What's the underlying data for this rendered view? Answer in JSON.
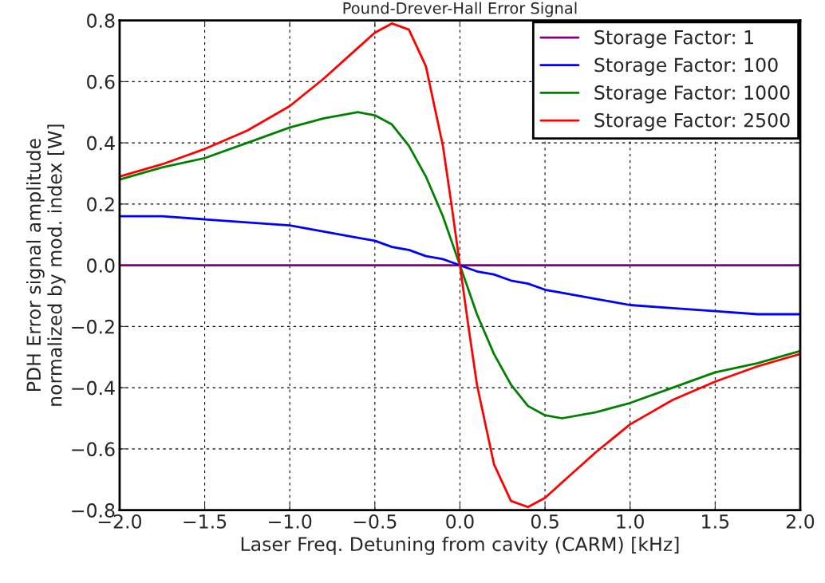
{
  "chart_data": {
    "type": "line",
    "title": "Pound-Drever-Hall Error Signal",
    "xlabel": "Laser Freq. Detuning from cavity (CARM) [kHz]",
    "ylabel": "PDH Error signal amplitude\nnormalized by mod. index [W]",
    "x": [
      -2,
      -1.75,
      -1.5,
      -1.25,
      -1,
      -0.8,
      -0.6,
      -0.5,
      -0.4,
      -0.3,
      -0.2,
      -0.1,
      -0.05,
      0,
      0.05,
      0.1,
      0.2,
      0.3,
      0.4,
      0.5,
      0.6,
      0.8,
      1,
      1.25,
      1.5,
      1.75,
      2
    ],
    "series": [
      {
        "name": "Storage Factor: 1",
        "color": "#800080",
        "values": [
          0.0,
          0.0,
          0.0,
          0.0,
          0.0,
          0.0,
          0.0,
          0.0,
          0.0,
          0.0,
          0.0,
          0.0,
          0.0,
          0.0,
          0.0,
          0.0,
          0.0,
          0.0,
          0.0,
          0.0,
          0.0,
          0.0,
          0.0,
          0.0,
          0.0,
          0.0,
          0.0
        ]
      },
      {
        "name": "Storage Factor: 100",
        "color": "#0000ff",
        "values": [
          0.16,
          0.16,
          0.15,
          0.14,
          0.13,
          0.11,
          0.09,
          0.08,
          0.06,
          0.05,
          0.03,
          0.02,
          0.01,
          0.0,
          -0.01,
          -0.02,
          -0.03,
          -0.05,
          -0.06,
          -0.08,
          -0.09,
          -0.11,
          -0.13,
          -0.14,
          -0.15,
          -0.16,
          -0.16
        ]
      },
      {
        "name": "Storage Factor: 1000",
        "color": "#008000",
        "values": [
          0.28,
          0.32,
          0.35,
          0.4,
          0.45,
          0.48,
          0.5,
          0.49,
          0.46,
          0.39,
          0.29,
          0.16,
          0.08,
          0.0,
          -0.08,
          -0.16,
          -0.29,
          -0.39,
          -0.46,
          -0.49,
          -0.5,
          -0.48,
          -0.45,
          -0.4,
          -0.35,
          -0.32,
          -0.28
        ]
      },
      {
        "name": "Storage Factor: 2500",
        "color": "#ff0000",
        "values": [
          0.29,
          0.33,
          0.38,
          0.44,
          0.52,
          0.61,
          0.71,
          0.76,
          0.79,
          0.77,
          0.65,
          0.39,
          0.2,
          0.0,
          -0.2,
          -0.39,
          -0.65,
          -0.77,
          -0.79,
          -0.76,
          -0.71,
          -0.61,
          -0.52,
          -0.44,
          -0.38,
          -0.33,
          -0.29
        ]
      }
    ],
    "xlim": [
      -2,
      2
    ],
    "ylim": [
      -0.8,
      0.8
    ],
    "xticks": [
      {
        "value": -2,
        "label": "−2.0"
      },
      {
        "value": -1.5,
        "label": "−1.5"
      },
      {
        "value": -1,
        "label": "−1.0"
      },
      {
        "value": -0.5,
        "label": "−0.5"
      },
      {
        "value": 0,
        "label": "0.0"
      },
      {
        "value": 0.5,
        "label": "0.5"
      },
      {
        "value": 1,
        "label": "1.0"
      },
      {
        "value": 1.5,
        "label": "1.5"
      },
      {
        "value": 2,
        "label": "2.0"
      }
    ],
    "yticks": [
      {
        "value": -0.8,
        "label": "−0.8"
      },
      {
        "value": -0.6,
        "label": "−0.6"
      },
      {
        "value": -0.4,
        "label": "−0.4"
      },
      {
        "value": -0.2,
        "label": "−0.2"
      },
      {
        "value": 0,
        "label": "0.0"
      },
      {
        "value": 0.2,
        "label": "0.2"
      },
      {
        "value": 0.4,
        "label": "0.4"
      },
      {
        "value": 0.6,
        "label": "0.6"
      },
      {
        "value": 0.8,
        "label": "0.8"
      }
    ],
    "grid": true,
    "legend": "top right",
    "line_style": "solid",
    "marker": "none"
  }
}
